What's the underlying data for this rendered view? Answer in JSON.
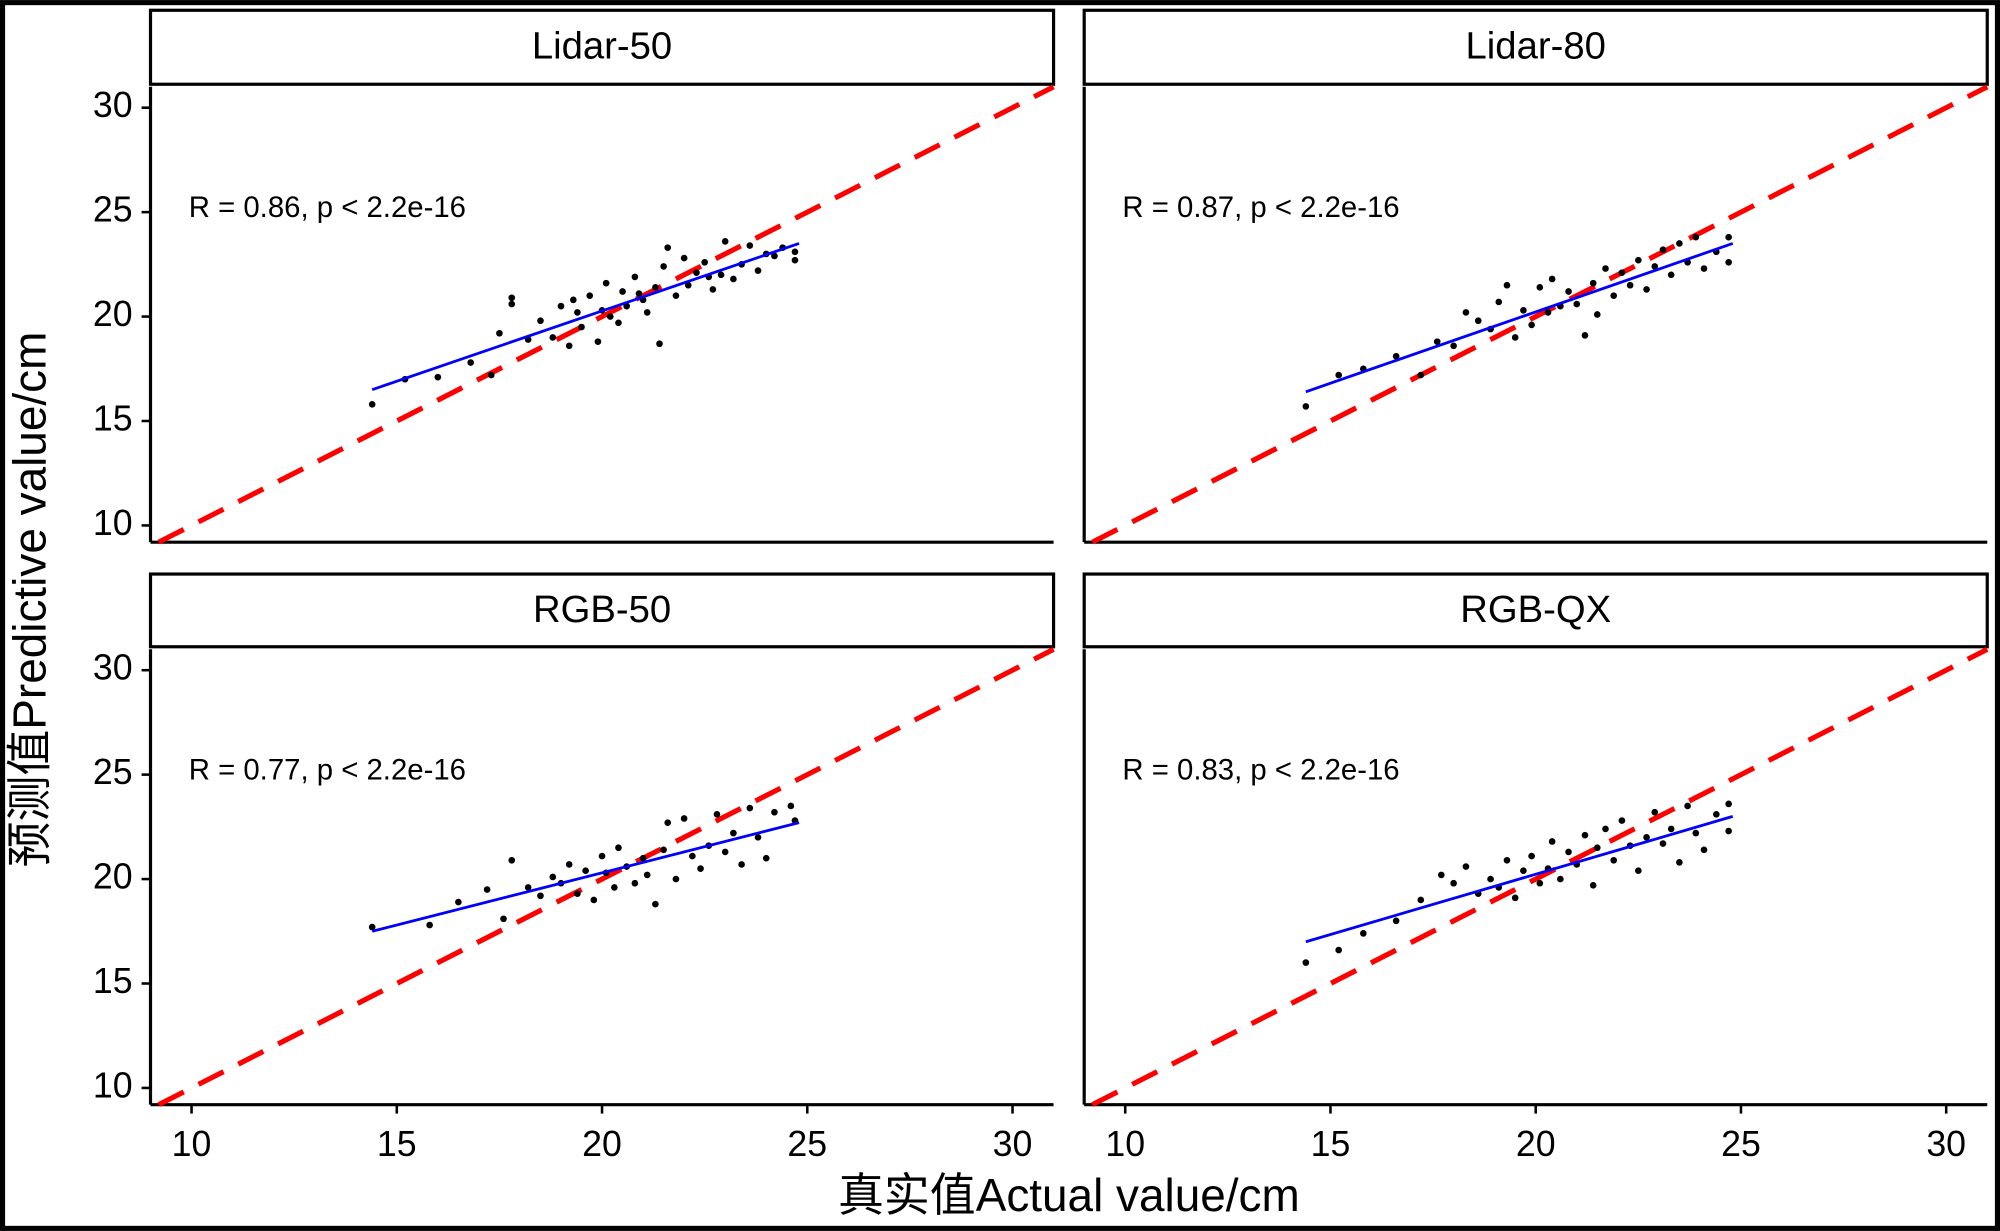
{
  "axis_labels": {
    "x": "真实值Actual value/cm",
    "y": "预测值Predictive value/cm"
  },
  "chart_data": [
    {
      "type": "scatter",
      "title": "Lidar-50",
      "annotation": "R = 0.86, p < 2.2e-16",
      "x": [
        14.4,
        15.2,
        16.0,
        16.8,
        17.3,
        17.5,
        17.8,
        17.8,
        18.2,
        18.5,
        18.8,
        19.0,
        19.2,
        19.4,
        19.5,
        19.7,
        19.9,
        20.0,
        20.1,
        20.2,
        20.4,
        20.5,
        20.6,
        20.8,
        21.0,
        21.1,
        21.3,
        21.4,
        21.5,
        21.6,
        21.8,
        22.0,
        22.1,
        22.3,
        22.5,
        22.7,
        22.9,
        23.0,
        23.2,
        23.4,
        23.6,
        23.8,
        24.0,
        24.2,
        24.4,
        24.7,
        24.7,
        19.3,
        20.9,
        22.6
      ],
      "y": [
        15.8,
        17.0,
        17.1,
        17.8,
        17.2,
        19.2,
        20.9,
        20.6,
        18.9,
        19.8,
        19.0,
        20.5,
        18.6,
        20.2,
        19.5,
        21.0,
        18.8,
        20.3,
        21.6,
        20.0,
        19.7,
        21.2,
        20.5,
        21.9,
        20.8,
        20.2,
        21.4,
        18.7,
        22.4,
        23.3,
        21.0,
        22.8,
        21.5,
        22.1,
        22.6,
        21.3,
        22.0,
        23.6,
        21.8,
        22.5,
        23.4,
        22.2,
        23.0,
        22.9,
        23.3,
        22.7,
        23.1,
        20.8,
        21.1,
        21.9
      ],
      "fit_x": [
        14.4,
        24.8
      ],
      "fit_y": [
        16.5,
        23.5
      ],
      "point_color": "#000000",
      "fit_color": "#0000ff",
      "ref_color": "#ff0000",
      "xlim": [
        9.0,
        31.0
      ],
      "ylim": [
        9.2,
        31.0
      ],
      "yticks": [
        10,
        15,
        20,
        25,
        30
      ]
    },
    {
      "type": "scatter",
      "title": "Lidar-80",
      "annotation": "R = 0.87, p < 2.2e-16",
      "x": [
        14.4,
        15.2,
        15.8,
        16.6,
        17.2,
        17.6,
        18.0,
        18.3,
        18.6,
        18.9,
        19.1,
        19.3,
        19.5,
        19.7,
        19.9,
        20.1,
        20.3,
        20.4,
        20.6,
        20.8,
        21.0,
        21.2,
        21.4,
        21.5,
        21.7,
        21.9,
        22.1,
        22.3,
        22.5,
        22.7,
        22.9,
        23.1,
        23.3,
        23.5,
        23.7,
        23.9,
        24.1,
        24.4,
        24.7,
        24.7
      ],
      "y": [
        15.7,
        17.2,
        17.5,
        18.1,
        17.2,
        18.8,
        18.6,
        20.2,
        19.8,
        19.4,
        20.7,
        21.5,
        19.0,
        20.3,
        19.6,
        21.4,
        20.2,
        21.8,
        20.5,
        21.2,
        20.6,
        19.1,
        21.6,
        20.1,
        22.3,
        21.0,
        22.1,
        21.5,
        22.7,
        21.3,
        22.4,
        23.2,
        22.0,
        23.5,
        22.6,
        23.8,
        22.3,
        23.1,
        23.8,
        22.6
      ],
      "fit_x": [
        14.4,
        24.8
      ],
      "fit_y": [
        16.4,
        23.5
      ],
      "point_color": "#000000",
      "fit_color": "#0000ff",
      "ref_color": "#ff0000",
      "xlim": [
        9.0,
        31.0
      ],
      "ylim": [
        9.2,
        31.0
      ]
    },
    {
      "type": "scatter",
      "title": "RGB-50",
      "annotation": "R = 0.77, p < 2.2e-16",
      "x": [
        14.4,
        15.8,
        16.5,
        17.2,
        17.6,
        17.8,
        18.2,
        18.5,
        18.8,
        19.0,
        19.2,
        19.4,
        19.6,
        19.8,
        20.0,
        20.1,
        20.3,
        20.4,
        20.6,
        20.8,
        21.0,
        21.1,
        21.3,
        21.5,
        21.6,
        21.8,
        22.0,
        22.2,
        22.4,
        22.6,
        22.8,
        23.0,
        23.2,
        23.4,
        23.6,
        23.8,
        24.0,
        24.2,
        24.6,
        24.7
      ],
      "y": [
        17.7,
        17.8,
        18.9,
        19.5,
        18.1,
        20.9,
        19.6,
        19.2,
        20.1,
        19.8,
        20.7,
        19.3,
        20.4,
        19.0,
        21.1,
        20.3,
        19.6,
        21.5,
        20.6,
        19.8,
        21.0,
        20.2,
        18.8,
        21.4,
        22.7,
        20.0,
        22.9,
        21.1,
        20.5,
        21.6,
        23.1,
        21.3,
        22.2,
        20.7,
        23.4,
        22.0,
        21.0,
        23.2,
        23.5,
        22.8
      ],
      "fit_x": [
        14.4,
        24.8
      ],
      "fit_y": [
        17.5,
        22.7
      ],
      "point_color": "#000000",
      "fit_color": "#0000ff",
      "ref_color": "#ff0000",
      "xlim": [
        9.0,
        31.0
      ],
      "ylim": [
        9.2,
        31.0
      ],
      "xticks": [
        10,
        15,
        20,
        25,
        30
      ],
      "yticks": [
        10,
        15,
        20,
        25,
        30
      ]
    },
    {
      "type": "scatter",
      "title": "RGB-QX",
      "annotation": "R = 0.83, p < 2.2e-16",
      "x": [
        14.4,
        15.2,
        15.8,
        16.6,
        17.2,
        17.7,
        18.0,
        18.3,
        18.6,
        18.9,
        19.1,
        19.3,
        19.5,
        19.7,
        19.9,
        20.1,
        20.3,
        20.4,
        20.6,
        20.8,
        21.0,
        21.2,
        21.4,
        21.5,
        21.7,
        21.9,
        22.1,
        22.3,
        22.5,
        22.7,
        22.9,
        23.1,
        23.3,
        23.5,
        23.7,
        23.9,
        24.1,
        24.4,
        24.7,
        24.7
      ],
      "y": [
        16.0,
        16.6,
        17.4,
        18.0,
        19.0,
        20.2,
        19.8,
        20.6,
        19.3,
        20.0,
        19.6,
        20.9,
        19.1,
        20.4,
        21.1,
        19.8,
        20.5,
        21.8,
        20.0,
        21.3,
        20.7,
        22.1,
        19.7,
        21.5,
        22.4,
        20.9,
        22.8,
        21.6,
        20.4,
        22.0,
        23.2,
        21.7,
        22.4,
        20.8,
        23.5,
        22.2,
        21.4,
        23.1,
        23.6,
        22.3
      ],
      "fit_x": [
        14.4,
        24.8
      ],
      "fit_y": [
        17.0,
        23.0
      ],
      "point_color": "#000000",
      "fit_color": "#0000ff",
      "ref_color": "#ff0000",
      "xlim": [
        9.0,
        31.0
      ],
      "ylim": [
        9.2,
        31.0
      ],
      "xticks": [
        10,
        15,
        20,
        25,
        30
      ]
    }
  ]
}
